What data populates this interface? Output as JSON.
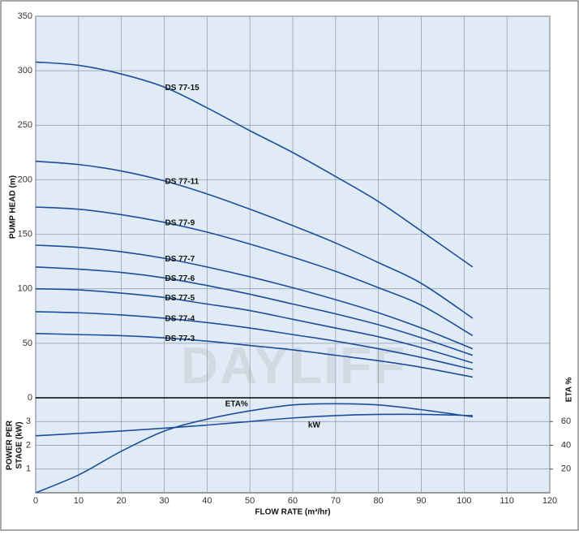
{
  "chart_data": [
    {
      "type": "line",
      "ylabel": "PUMP HEAD (m)",
      "watermark": "DAYLIFF",
      "ylim": [
        0,
        350
      ],
      "yticks": [
        0,
        50,
        100,
        150,
        200,
        250,
        300,
        350
      ],
      "xlim": [
        0,
        120
      ],
      "x": [
        0,
        10,
        20,
        30,
        40,
        50,
        60,
        70,
        80,
        90,
        102
      ],
      "grid": true,
      "series": [
        {
          "name": "DS 77-15",
          "color": "#1a4f9c",
          "values": [
            308,
            305,
            297,
            285,
            266,
            245,
            225,
            203,
            180,
            153,
            120
          ]
        },
        {
          "name": "DS 77-11",
          "color": "#1a4f9c",
          "values": [
            217,
            214,
            208,
            199,
            187,
            173,
            158,
            142,
            124,
            105,
            73
          ]
        },
        {
          "name": "DS 77-9",
          "color": "#1a4f9c",
          "values": [
            175,
            173,
            168,
            161,
            152,
            141,
            129,
            116,
            101,
            85,
            57
          ]
        },
        {
          "name": "DS 77-7",
          "color": "#1a4f9c",
          "values": [
            140,
            138,
            134,
            128,
            120,
            111,
            101,
            90,
            78,
            64,
            45
          ]
        },
        {
          "name": "DS 77-6",
          "color": "#1a4f9c",
          "values": [
            120,
            118,
            115,
            110,
            103,
            95,
            86,
            77,
            67,
            55,
            39
          ]
        },
        {
          "name": "DS 77-5",
          "color": "#1a4f9c",
          "values": [
            100,
            99,
            96,
            92,
            86,
            80,
            72,
            64,
            56,
            46,
            32
          ]
        },
        {
          "name": "DS 77-4",
          "color": "#1a4f9c",
          "values": [
            79,
            78,
            76,
            73,
            69,
            64,
            58,
            52,
            45,
            37,
            26
          ]
        },
        {
          "name": "DS 77-3",
          "color": "#1a4f9c",
          "values": [
            59,
            58,
            57,
            55,
            52,
            48,
            44,
            39,
            34,
            28,
            19
          ]
        }
      ]
    },
    {
      "type": "line",
      "ylabel": [
        "POWER PER",
        "STAGE (kW)"
      ],
      "y2label": "ETA %",
      "xlabel": "FLOW RATE (m³/hr)",
      "xlim": [
        0,
        120
      ],
      "xticks": [
        0,
        10,
        20,
        30,
        40,
        50,
        60,
        70,
        80,
        90,
        100,
        110,
        120
      ],
      "ylim": [
        0,
        4
      ],
      "yticks": [
        1,
        2,
        3
      ],
      "y2lim": [
        0,
        80
      ],
      "y2ticks": [
        20,
        40,
        60
      ],
      "x": [
        0,
        10,
        20,
        30,
        40,
        50,
        60,
        70,
        80,
        90,
        102
      ],
      "grid": true,
      "series": [
        {
          "name": "kW",
          "color": "#1a4f9c",
          "values": [
            2.4,
            2.5,
            2.6,
            2.72,
            2.85,
            3.0,
            3.15,
            3.25,
            3.3,
            3.3,
            3.25
          ]
        },
        {
          "name": "ETA%",
          "color": "#1a4f9c",
          "axis": "y2",
          "values": [
            0,
            15,
            35,
            52,
            62,
            69,
            74,
            75,
            74,
            70,
            64
          ]
        }
      ]
    }
  ]
}
